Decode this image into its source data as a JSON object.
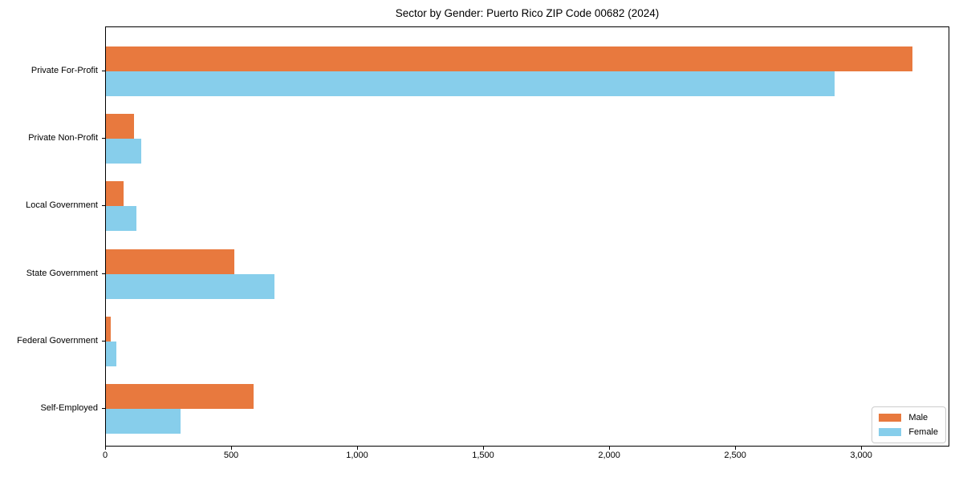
{
  "chart_data": {
    "type": "bar",
    "orientation": "horizontal",
    "title": "Sector by Gender: Puerto Rico ZIP Code 00682 (2024)",
    "categories": [
      "Private For-Profit",
      "Private Non-Profit",
      "Local Government",
      "State Government",
      "Federal Government",
      "Self-Employed"
    ],
    "series": [
      {
        "name": "Male",
        "color": "#e8793e",
        "values": [
          3200,
          110,
          70,
          510,
          20,
          585
        ]
      },
      {
        "name": "Female",
        "color": "#87ceeb",
        "values": [
          2890,
          140,
          120,
          670,
          40,
          295
        ]
      }
    ],
    "xlim": [
      0,
      3350
    ],
    "xticks": [
      {
        "value": 0,
        "label": "0"
      },
      {
        "value": 500,
        "label": "500"
      },
      {
        "value": 1000,
        "label": "1,000"
      },
      {
        "value": 1500,
        "label": "1,500"
      },
      {
        "value": 2000,
        "label": "2,000"
      },
      {
        "value": 2500,
        "label": "2,500"
      },
      {
        "value": 3000,
        "label": "3,000"
      }
    ],
    "grid": false,
    "legend_position": "lower right"
  }
}
